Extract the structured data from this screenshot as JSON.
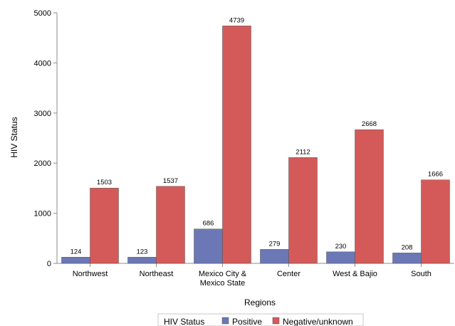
{
  "chart_data": {
    "type": "bar",
    "title": "",
    "xlabel": "Regions",
    "ylabel": "HIV Status",
    "ylim": [
      0,
      5000
    ],
    "yticks": [
      0,
      1000,
      2000,
      3000,
      4000,
      5000
    ],
    "grid": false,
    "legend_position": "bottom",
    "categories": [
      "Northwest",
      "Northeast",
      "Mexico City & Mexico State",
      "Center",
      "West & Bajio",
      "South"
    ],
    "series": [
      {
        "name": "Positive",
        "values": [
          124,
          123,
          686,
          279,
          230,
          208
        ],
        "color": "#6b78b5"
      },
      {
        "name": "Negative/unknown",
        "values": [
          1503,
          1537,
          4739,
          2112,
          2668,
          1666
        ],
        "color": "#d45a5a"
      }
    ],
    "legend_title": "HIV Status"
  }
}
